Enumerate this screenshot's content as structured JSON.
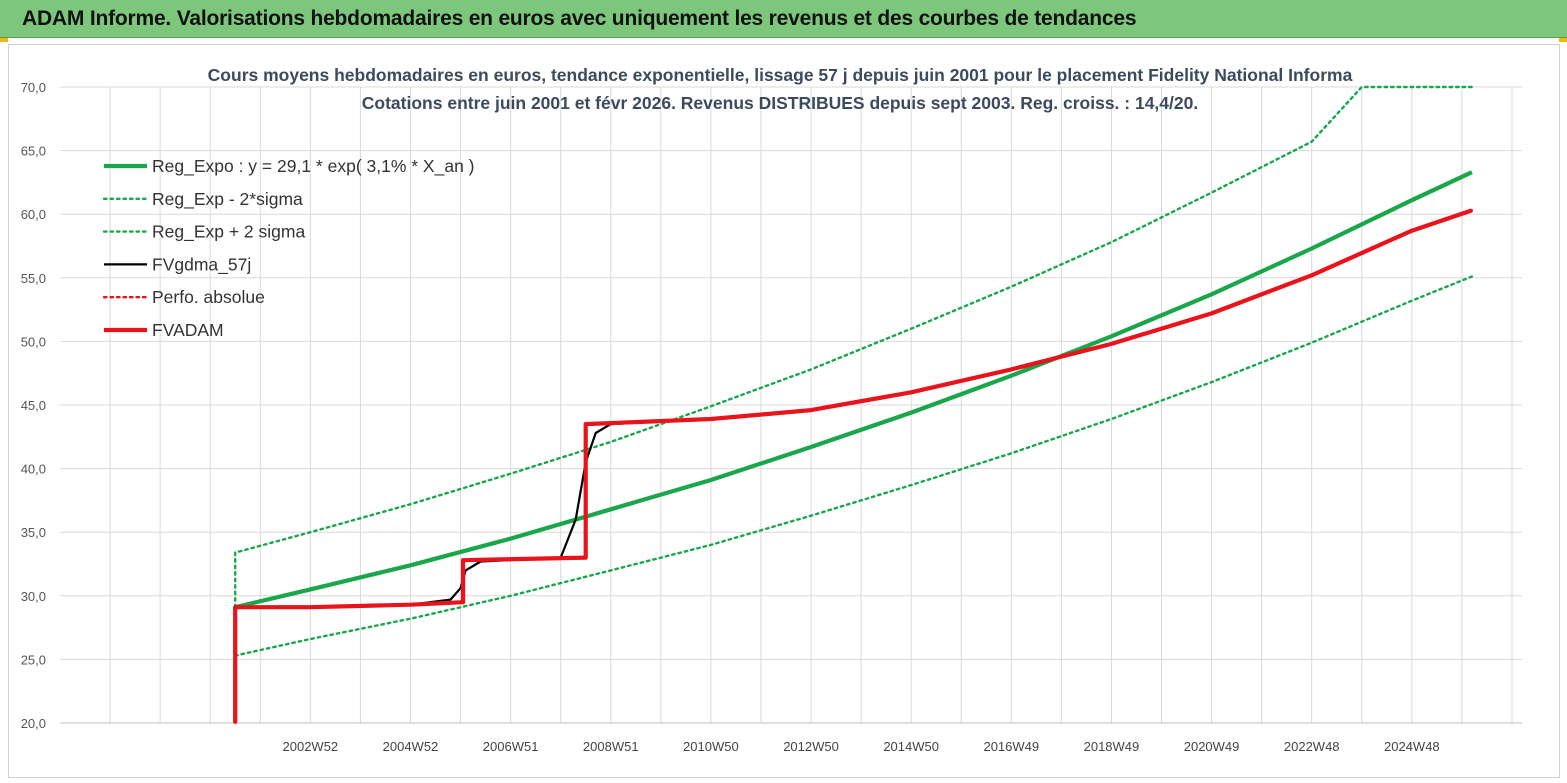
{
  "header": {
    "title": "ADAM Informe. Valorisations hebdomadaires en euros avec uniquement les revenus et des courbes de tendances"
  },
  "colors": {
    "banner": "#7dc77d",
    "reg_expo": "#1aa64a",
    "fvgdma": "#000000",
    "fvadam": "#e8131b",
    "grid": "#d9d9d9"
  },
  "chart_data": {
    "type": "line",
    "title": "Cours moyens hebdomadaires en euros, tendance exponentielle, lissage 57 j depuis juin 2001 pour le placement Fidelity National Informa",
    "subtitle": "Cotations entre juin 2001 et févr 2026. Revenus DISTRIBUES depuis sept 2003. Reg. croiss. : 14,4/20.",
    "xlabel": "",
    "ylabel": "",
    "ylim": [
      20,
      70
    ],
    "xlim": [
      1998.0,
      2027.2
    ],
    "yticks": [
      "20,0",
      "25,0",
      "30,0",
      "35,0",
      "40,0",
      "45,0",
      "50,0",
      "55,0",
      "60,0",
      "65,0",
      "70,0"
    ],
    "xticks": [
      {
        "label": "2002W52",
        "x": 2003.0
      },
      {
        "label": "2004W52",
        "x": 2005.0
      },
      {
        "label": "2006W51",
        "x": 2007.0
      },
      {
        "label": "2008W51",
        "x": 2009.0
      },
      {
        "label": "2010W50",
        "x": 2011.0
      },
      {
        "label": "2012W50",
        "x": 2013.0
      },
      {
        "label": "2014W50",
        "x": 2015.0
      },
      {
        "label": "2016W49",
        "x": 2017.0
      },
      {
        "label": "2018W49",
        "x": 2019.0
      },
      {
        "label": "2020W49",
        "x": 2021.0
      },
      {
        "label": "2022W48",
        "x": 2023.0
      },
      {
        "label": "2024W48",
        "x": 2025.0
      }
    ],
    "grid": true,
    "legend_position": "top-left",
    "series": [
      {
        "name": "Reg_Expo : y = 29,1 * exp( 3,1% *  X_an )",
        "style": "solid-thick",
        "color": "#1aa64a",
        "x": [
          2001.5,
          2003,
          2005,
          2007,
          2009,
          2011,
          2013,
          2015,
          2017,
          2019,
          2021,
          2023,
          2025,
          2026.2
        ],
        "y": [
          29.1,
          30.5,
          32.4,
          34.5,
          36.8,
          39.1,
          41.7,
          44.4,
          47.3,
          50.4,
          53.7,
          57.3,
          61.1,
          63.3
        ]
      },
      {
        "name": "Reg_Exp - 2*sigma",
        "style": "dotted",
        "color": "#1aa64a",
        "x": [
          2001.5,
          2003,
          2005,
          2007,
          2009,
          2011,
          2013,
          2015,
          2017,
          2019,
          2021,
          2023,
          2025,
          2026.2
        ],
        "y": [
          25.3,
          26.6,
          28.2,
          30.0,
          32.0,
          34.0,
          36.3,
          38.7,
          41.2,
          43.9,
          46.8,
          49.9,
          53.2,
          55.1
        ]
      },
      {
        "name": "Reg_Exp + 2 sigma",
        "style": "dotted",
        "color": "#1aa64a",
        "x": [
          2001.5,
          2001.5,
          2003,
          2005,
          2007,
          2009,
          2011,
          2013,
          2015,
          2017,
          2019,
          2021,
          2023,
          2024.0,
          2026.2
        ],
        "y": [
          29.1,
          33.4,
          35.0,
          37.2,
          39.6,
          42.1,
          44.9,
          47.8,
          51.0,
          54.3,
          57.8,
          61.7,
          65.7,
          70.0,
          70.0
        ]
      },
      {
        "name": "FVgdma_57j",
        "style": "solid",
        "color": "#000000",
        "x": [
          2001.5,
          2001.5,
          2003,
          2005,
          2005.8,
          2006.0,
          2006.1,
          2006.4,
          2008.0,
          2008.3,
          2008.5,
          2008.7,
          2009.0,
          2011,
          2013,
          2015,
          2017,
          2019,
          2021,
          2023,
          2025,
          2026.2
        ],
        "y": [
          20.0,
          29.1,
          29.1,
          29.3,
          29.7,
          30.6,
          32.0,
          32.7,
          33.0,
          36.0,
          40.5,
          42.8,
          43.5,
          43.9,
          44.6,
          46.0,
          47.8,
          49.8,
          52.2,
          55.2,
          58.7,
          60.3
        ]
      },
      {
        "name": "Perfo. absolue",
        "style": "dotted",
        "color": "#e8131b",
        "x": [
          2001.5,
          2001.5,
          2003,
          2005,
          2006.05,
          2006.05,
          2008.5,
          2008.5,
          2011,
          2013,
          2015,
          2017,
          2019,
          2021,
          2023,
          2025,
          2026.2
        ],
        "y": [
          20.0,
          29.1,
          29.1,
          29.3,
          29.5,
          32.8,
          33.0,
          43.5,
          43.9,
          44.6,
          46.0,
          47.8,
          49.8,
          52.2,
          55.2,
          58.7,
          60.3
        ]
      },
      {
        "name": "FVADAM",
        "style": "solid-thick",
        "color": "#e8131b",
        "x": [
          2001.5,
          2001.5,
          2003,
          2005,
          2006.05,
          2006.05,
          2008.5,
          2008.5,
          2011,
          2013,
          2015,
          2017,
          2019,
          2021,
          2023,
          2025,
          2026.2
        ],
        "y": [
          20.0,
          29.1,
          29.1,
          29.3,
          29.5,
          32.8,
          33.0,
          43.5,
          43.9,
          44.6,
          46.0,
          47.8,
          49.8,
          52.2,
          55.2,
          58.7,
          60.3
        ]
      }
    ]
  }
}
